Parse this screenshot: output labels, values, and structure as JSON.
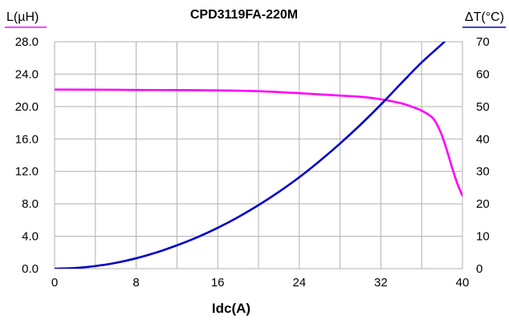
{
  "chart_data": {
    "type": "line",
    "title": "CPD3119FA-220M",
    "xlabel": "Idc(A)",
    "ylabel_left": "L(µH)",
    "ylabel_right": "ΔT(°C)",
    "xlim": [
      0,
      40
    ],
    "ylim_left": [
      0,
      28
    ],
    "ylim_right": [
      0,
      70
    ],
    "xticks": [
      0,
      8,
      16,
      24,
      32,
      40
    ],
    "yticks_left": [
      "0.0",
      "4.0",
      "8.0",
      "12.0",
      "16.0",
      "20.0",
      "24.0",
      "28.0"
    ],
    "yticks_right": [
      "0",
      "10",
      "20",
      "30",
      "40",
      "50",
      "60",
      "70"
    ],
    "grid": true,
    "colors": {
      "inductance": "#ff00ff",
      "temperature": "#0000cc",
      "left_axis_underline": "#ff00ff",
      "right_axis_underline": "#0000cc"
    },
    "series": [
      {
        "axis": "left",
        "color": "#ff00ff",
        "x": [
          0,
          4,
          8,
          12,
          16,
          20,
          24,
          28,
          30,
          32,
          34,
          35,
          36,
          37,
          37.5,
          38,
          38.5,
          39,
          39.5,
          40
        ],
        "y": [
          22.1,
          22.08,
          22.05,
          22.03,
          22.0,
          21.9,
          21.65,
          21.35,
          21.2,
          20.9,
          20.4,
          20.0,
          19.5,
          18.7,
          17.8,
          16.4,
          14.5,
          12.4,
          10.5,
          9.0
        ]
      },
      {
        "axis": "right",
        "color": "#0000cc",
        "x": [
          0,
          2,
          4,
          6,
          8,
          10,
          12,
          14,
          16,
          18,
          20,
          22,
          24,
          26,
          28,
          30,
          32,
          34,
          36,
          38,
          39
        ],
        "y": [
          0,
          0.2,
          0.8,
          1.8,
          3.2,
          5.0,
          7.2,
          9.7,
          12.6,
          15.9,
          19.6,
          23.7,
          28.2,
          33.2,
          38.6,
          44.4,
          50.6,
          57.2,
          63.6,
          69.3,
          72.5
        ]
      }
    ]
  }
}
